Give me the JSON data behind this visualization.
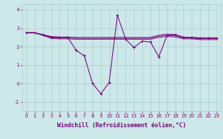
{
  "xlabel": "Windchill (Refroidissement éolien,°C)",
  "x_values": [
    0,
    1,
    2,
    3,
    4,
    5,
    6,
    7,
    8,
    9,
    10,
    11,
    12,
    13,
    14,
    15,
    16,
    17,
    18,
    19,
    20,
    21,
    22,
    23
  ],
  "y_main": [
    2.75,
    2.75,
    2.65,
    2.5,
    2.5,
    2.5,
    1.8,
    1.5,
    0.0,
    -0.55,
    0.05,
    3.7,
    2.4,
    1.95,
    2.3,
    2.25,
    1.45,
    2.6,
    2.65,
    2.5,
    2.5,
    2.45,
    2.45,
    2.45
  ],
  "y_upper": [
    2.75,
    2.75,
    2.65,
    2.55,
    2.52,
    2.52,
    2.5,
    2.5,
    2.5,
    2.5,
    2.5,
    2.5,
    2.5,
    2.5,
    2.5,
    2.5,
    2.62,
    2.68,
    2.65,
    2.52,
    2.5,
    2.48,
    2.48,
    2.48
  ],
  "y_lower": [
    2.75,
    2.75,
    2.6,
    2.45,
    2.42,
    2.42,
    2.4,
    2.4,
    2.4,
    2.4,
    2.4,
    2.4,
    2.4,
    2.4,
    2.4,
    2.4,
    2.5,
    2.55,
    2.52,
    2.42,
    2.42,
    2.38,
    2.38,
    2.38
  ],
  "y_mid": [
    2.75,
    2.75,
    2.625,
    2.5,
    2.47,
    2.47,
    2.45,
    2.45,
    2.45,
    2.45,
    2.45,
    2.45,
    2.45,
    2.45,
    2.45,
    2.45,
    2.56,
    2.615,
    2.585,
    2.47,
    2.46,
    2.43,
    2.43,
    2.43
  ],
  "line_color": "#800080",
  "bg_color": "#cce8e8",
  "grid_color": "#aacccc",
  "ylim": [
    -1.5,
    4.3
  ],
  "yticks": [
    -1,
    0,
    1,
    2,
    3,
    4
  ],
  "xlim": [
    -0.5,
    23.5
  ],
  "tick_fontsize": 5.0,
  "xlabel_fontsize": 6.0
}
